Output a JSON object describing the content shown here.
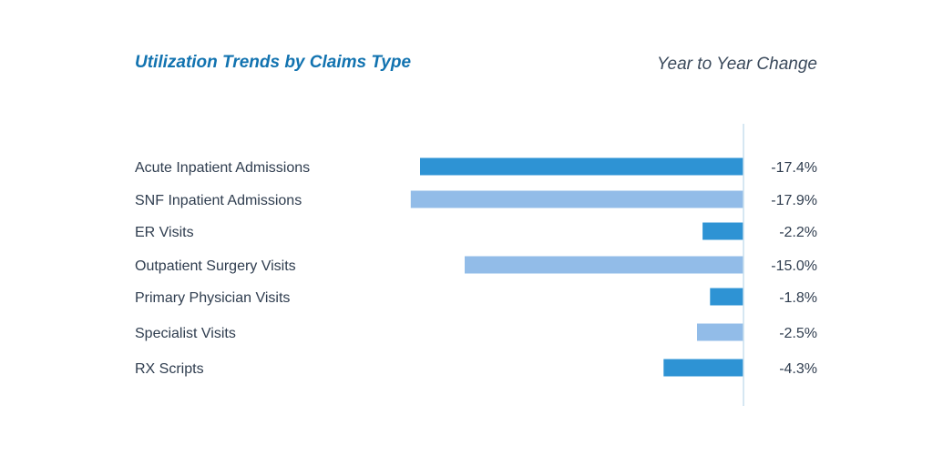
{
  "chart_data": {
    "type": "bar",
    "orientation": "horizontal",
    "title": "Utilization Trends by Claims Type",
    "subtitle": "Year to Year Change",
    "categories": [
      "Acute Inpatient Admissions",
      "SNF Inpatient Admissions",
      "ER Visits",
      "Outpatient Surgery Visits",
      "Primary Physician Visits",
      "Specialist Visits",
      "RX Scripts"
    ],
    "values": [
      -17.4,
      -17.9,
      -2.2,
      -15.0,
      -1.8,
      -2.5,
      -4.3
    ],
    "value_labels": [
      "-17.4%",
      "-17.9%",
      "-2.2%",
      "-15.0%",
      "-1.8%",
      "-2.5%",
      "-4.3%"
    ],
    "unit": "%",
    "xlim": [
      -17.9,
      0
    ],
    "grid": false,
    "legend": "none",
    "colors": {
      "dark": "#2e93d4",
      "light": "#92bce8",
      "axis": "#c9dfee",
      "title": "#1273b0",
      "text": "#2f3d4f"
    },
    "bar_color_pattern": [
      "dark",
      "light",
      "dark",
      "light",
      "dark",
      "light",
      "dark"
    ]
  }
}
